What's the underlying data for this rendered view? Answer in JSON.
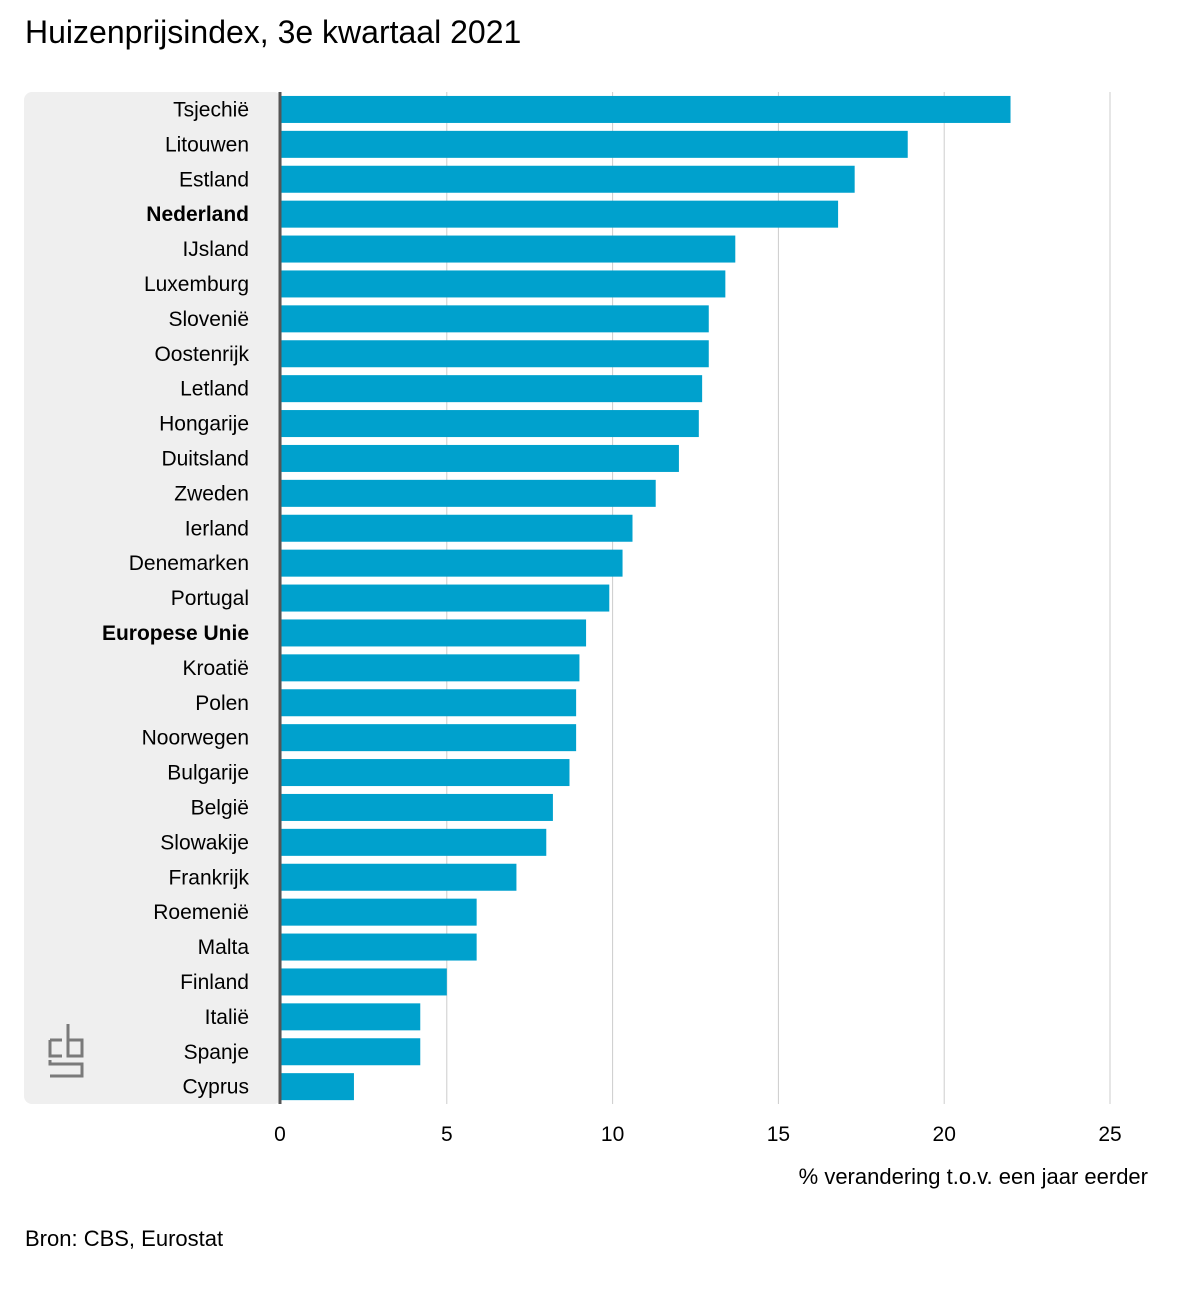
{
  "page": {
    "title": "Huizenprijsindex, 3e kwartaal 2021",
    "source": "Bron: CBS, Eurostat",
    "logo_text": "cbs"
  },
  "chart_data": {
    "type": "bar",
    "orientation": "horizontal",
    "title": "Huizenprijsindex, 3e kwartaal 2021",
    "xlabel": "% verandering t.o.v. een jaar eerder",
    "ylabel": "",
    "xlim": [
      0,
      25
    ],
    "xticks": [
      0,
      5,
      10,
      15,
      20,
      25
    ],
    "grid": true,
    "bar_color": "#00a1cd",
    "panel_color": "#efefef",
    "highlighted": [
      "Nederland",
      "Europese Unie"
    ],
    "categories": [
      "Tsjechië",
      "Litouwen",
      "Estland",
      "Nederland",
      "IJsland",
      "Luxemburg",
      "Slovenië",
      "Oostenrijk",
      "Letland",
      "Hongarije",
      "Duitsland",
      "Zweden",
      "Ierland",
      "Denemarken",
      "Portugal",
      "Europese Unie",
      "Kroatië",
      "Polen",
      "Noorwegen",
      "Bulgarije",
      "België",
      "Slowakije",
      "Frankrijk",
      "Roemenië",
      "Malta",
      "Finland",
      "Italië",
      "Spanje",
      "Cyprus"
    ],
    "values": [
      22.0,
      18.9,
      17.3,
      16.8,
      13.7,
      13.4,
      12.9,
      12.9,
      12.7,
      12.6,
      12.0,
      11.3,
      10.6,
      10.3,
      9.9,
      9.2,
      9.0,
      8.9,
      8.9,
      8.7,
      8.2,
      8.0,
      7.1,
      5.9,
      5.9,
      5.0,
      4.2,
      4.2,
      2.2
    ]
  }
}
